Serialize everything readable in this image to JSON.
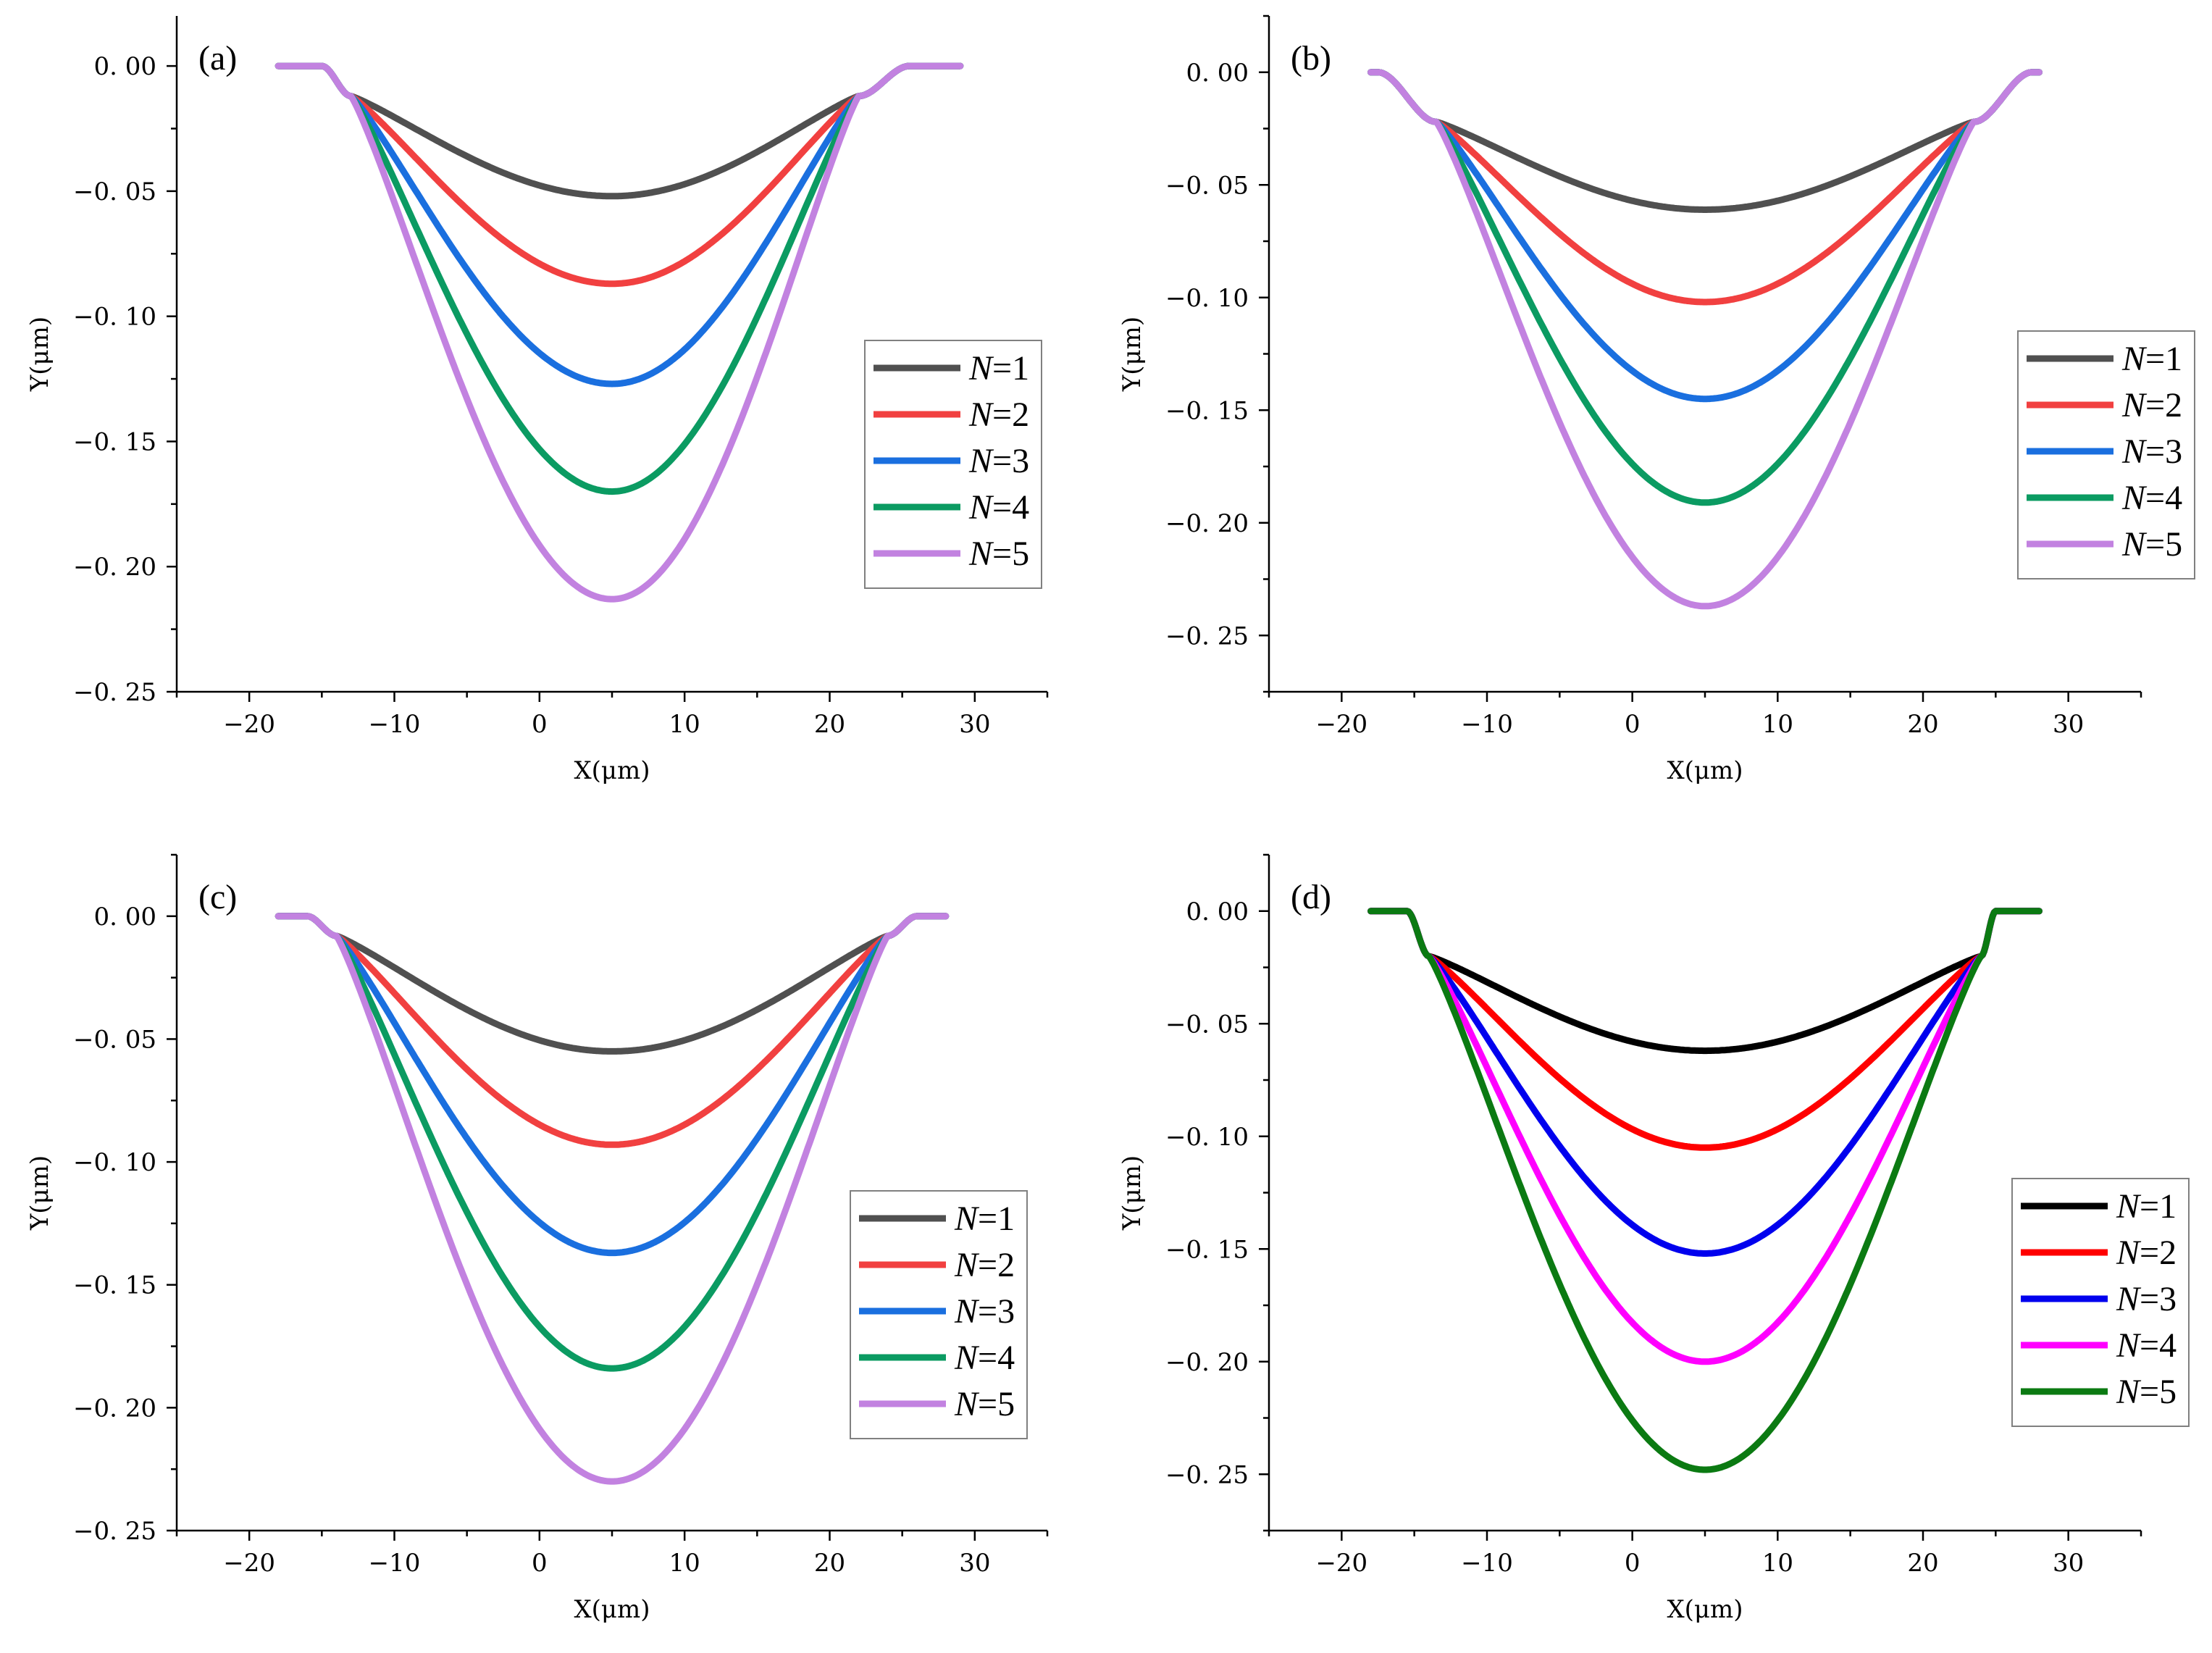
{
  "chart_data": [
    {
      "type": "line",
      "panel_label": "(a)",
      "xlabel": "X(μm)",
      "ylabel": "Y(μm)",
      "xlim": [
        -25,
        35
      ],
      "ylim": [
        -0.25,
        0.02
      ],
      "xticks": [
        -20,
        -10,
        0,
        10,
        20,
        30
      ],
      "xtick_labels": [
        "−20",
        "−10",
        "0",
        "10",
        "20",
        "30"
      ],
      "yticks": [
        0.0,
        -0.05,
        -0.1,
        -0.15,
        -0.2,
        -0.25
      ],
      "ytick_labels": [
        "0. 00",
        "−0. 05",
        "−0. 10",
        "−0. 15",
        "−0. 20",
        "−0. 25"
      ],
      "legend_position": "center-right",
      "profile": {
        "x_start": -18,
        "x_end": 29,
        "left_edge": -13,
        "right_edge": 22,
        "left_knee": -15,
        "right_knee": 25.5,
        "edge_depth": -0.012,
        "center": 5
      },
      "series": [
        {
          "name": "N=1",
          "label_var": "N",
          "label_rest": "=1",
          "color": "#505050",
          "min_y": -0.052,
          "min_x": 5,
          "shape": 2.0
        },
        {
          "name": "N=2",
          "label_var": "N",
          "label_rest": "=2",
          "color": "#f14040",
          "min_y": -0.087,
          "min_x": 5,
          "shape": 2.0
        },
        {
          "name": "N=3",
          "label_var": "N",
          "label_rest": "=3",
          "color": "#1a6fdf",
          "min_y": -0.127,
          "min_x": 5,
          "shape": 2.0
        },
        {
          "name": "N=4",
          "label_var": "N",
          "label_rest": "=4",
          "color": "#0b9b62",
          "min_y": -0.17,
          "min_x": 5,
          "shape": 2.0
        },
        {
          "name": "N=5",
          "label_var": "N",
          "label_rest": "=5",
          "color": "#c282e0",
          "min_y": -0.213,
          "min_x": 5,
          "shape": 2.0
        }
      ]
    },
    {
      "type": "line",
      "panel_label": "(b)",
      "xlabel": "X(μm)",
      "ylabel": "Y(μm)",
      "xlim": [
        -25,
        35
      ],
      "ylim": [
        -0.275,
        0.025
      ],
      "xticks": [
        -20,
        -10,
        0,
        10,
        20,
        30
      ],
      "xtick_labels": [
        "−20",
        "−10",
        "0",
        "10",
        "20",
        "30"
      ],
      "yticks": [
        0.0,
        -0.05,
        -0.1,
        -0.15,
        -0.2,
        -0.25
      ],
      "ytick_labels": [
        "0. 00",
        "−0. 05",
        "−0. 10",
        "−0. 15",
        "−0. 20",
        "−0. 25"
      ],
      "legend_position": "center-right",
      "profile": {
        "x_start": -18,
        "x_end": 28,
        "left_edge": -13.5,
        "right_edge": 23.5,
        "left_knee": -17.5,
        "right_knee": 27.5,
        "edge_depth": -0.022,
        "center": 5
      },
      "series": [
        {
          "name": "N=1",
          "label_var": "N",
          "label_rest": "=1",
          "color": "#505050",
          "min_y": -0.061,
          "min_x": 5,
          "shape": 2.0
        },
        {
          "name": "N=2",
          "label_var": "N",
          "label_rest": "=2",
          "color": "#f14040",
          "min_y": -0.102,
          "min_x": 5,
          "shape": 2.0
        },
        {
          "name": "N=3",
          "label_var": "N",
          "label_rest": "=3",
          "color": "#1a6fdf",
          "min_y": -0.145,
          "min_x": 5,
          "shape": 2.0
        },
        {
          "name": "N=4",
          "label_var": "N",
          "label_rest": "=4",
          "color": "#0b9b62",
          "min_y": -0.191,
          "min_x": 5,
          "shape": 2.0
        },
        {
          "name": "N=5",
          "label_var": "N",
          "label_rest": "=5",
          "color": "#c282e0",
          "min_y": -0.237,
          "min_x": 5,
          "shape": 2.0
        }
      ]
    },
    {
      "type": "line",
      "panel_label": "(c)",
      "xlabel": "X(μm)",
      "ylabel": "Y(μm)",
      "xlim": [
        -25,
        35
      ],
      "ylim": [
        -0.25,
        0.025
      ],
      "xticks": [
        -20,
        -10,
        0,
        10,
        20,
        30
      ],
      "xtick_labels": [
        "−20",
        "−10",
        "0",
        "10",
        "20",
        "30"
      ],
      "yticks": [
        0.0,
        -0.05,
        -0.1,
        -0.15,
        -0.2,
        -0.25
      ],
      "ytick_labels": [
        "0. 00",
        "−0. 05",
        "−0. 10",
        "−0. 15",
        "−0. 20",
        "−0. 25"
      ],
      "legend_position": "center-right",
      "profile": {
        "x_start": -18,
        "x_end": 28,
        "left_edge": -14,
        "right_edge": 24,
        "left_knee": -16,
        "right_knee": 26,
        "edge_depth": -0.008,
        "center": 5
      },
      "series": [
        {
          "name": "N=1",
          "label_var": "N",
          "label_rest": "=1",
          "color": "#505050",
          "min_y": -0.055,
          "min_x": 5,
          "shape": 2.0
        },
        {
          "name": "N=2",
          "label_var": "N",
          "label_rest": "=2",
          "color": "#f14040",
          "min_y": -0.093,
          "min_x": 5,
          "shape": 2.0
        },
        {
          "name": "N=3",
          "label_var": "N",
          "label_rest": "=3",
          "color": "#1a6fdf",
          "min_y": -0.137,
          "min_x": 5,
          "shape": 2.0
        },
        {
          "name": "N=4",
          "label_var": "N",
          "label_rest": "=4",
          "color": "#0b9b62",
          "min_y": -0.184,
          "min_x": 5,
          "shape": 2.0
        },
        {
          "name": "N=5",
          "label_var": "N",
          "label_rest": "=5",
          "color": "#c282e0",
          "min_y": -0.23,
          "min_x": 5,
          "shape": 2.0
        }
      ]
    },
    {
      "type": "line",
      "panel_label": "(d)",
      "xlabel": "X(μm)",
      "ylabel": "Y(μm)",
      "xlim": [
        -25,
        35
      ],
      "ylim": [
        -0.275,
        0.025
      ],
      "xticks": [
        -20,
        -10,
        0,
        10,
        20,
        30
      ],
      "xtick_labels": [
        "−20",
        "−10",
        "0",
        "10",
        "20",
        "30"
      ],
      "yticks": [
        0.0,
        -0.05,
        -0.1,
        -0.15,
        -0.2,
        -0.25
      ],
      "ytick_labels": [
        "0. 00",
        "−0. 05",
        "−0. 10",
        "−0. 15",
        "−0. 20",
        "−0. 25"
      ],
      "legend_position": "center-right",
      "profile": {
        "x_start": -18,
        "x_end": 28,
        "left_edge": -14,
        "right_edge": 24,
        "left_knee": -15.5,
        "right_knee": 25,
        "edge_depth": -0.02,
        "center": 5
      },
      "series": [
        {
          "name": "N=1",
          "label_var": "N",
          "label_rest": "=1",
          "color": "#000000",
          "min_y": -0.062,
          "min_x": 5,
          "shape": 2.0
        },
        {
          "name": "N=2",
          "label_var": "N",
          "label_rest": "=2",
          "color": "#ff0000",
          "min_y": -0.105,
          "min_x": 5,
          "shape": 2.0
        },
        {
          "name": "N=3",
          "label_var": "N",
          "label_rest": "=3",
          "color": "#0000ee",
          "min_y": -0.152,
          "min_x": 5,
          "shape": 2.0
        },
        {
          "name": "N=4",
          "label_var": "N",
          "label_rest": "=4",
          "color": "#ff00ff",
          "min_y": -0.2,
          "min_x": 5,
          "shape": 2.0
        },
        {
          "name": "N=5",
          "label_var": "N",
          "label_rest": "=5",
          "color": "#0b7a12",
          "min_y": -0.248,
          "min_x": 5,
          "shape": 2.0
        }
      ]
    }
  ]
}
